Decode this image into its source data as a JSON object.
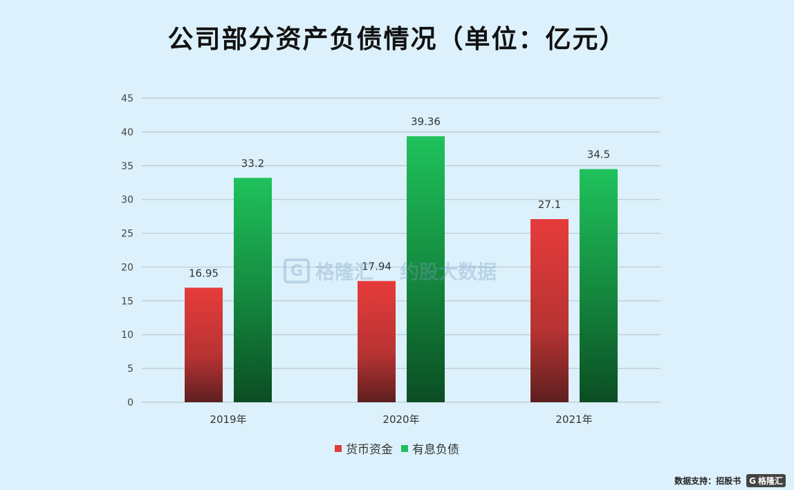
{
  "chart_data": {
    "type": "bar",
    "title": "公司部分资产负债情况（单位：亿元）",
    "categories": [
      "2019年",
      "2020年",
      "2021年"
    ],
    "series": [
      {
        "name": "货币资金",
        "values": [
          16.95,
          17.94,
          27.1
        ],
        "labels": [
          "16.95",
          "17.94",
          "27.1"
        ],
        "color": "#e23a3a"
      },
      {
        "name": "有息负债",
        "values": [
          33.2,
          39.36,
          34.5
        ],
        "labels": [
          "33.2",
          "39.36",
          "34.5"
        ],
        "color": "#1fbf5a"
      }
    ],
    "ylim": [
      0,
      45
    ],
    "yticks": [
      0,
      5,
      10,
      15,
      20,
      25,
      30,
      35,
      40,
      45
    ],
    "grid": true,
    "legend": "bottom"
  },
  "watermark": {
    "logo_glyph": "G",
    "brand": "格隆汇",
    "brand2": "约股大数据"
  },
  "footer": {
    "source": "数据支持：招股书",
    "logo_glyph": "G",
    "logo_text": "格隆汇"
  }
}
